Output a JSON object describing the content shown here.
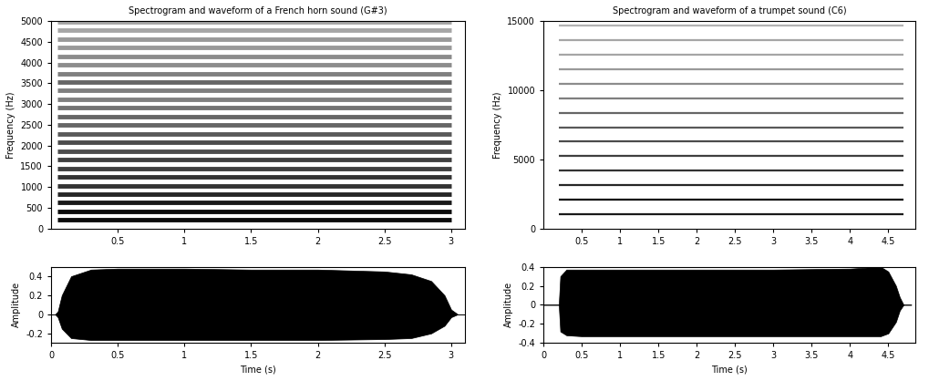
{
  "chart_data": [
    {
      "type": "spectrogram",
      "title": "Spectrogram and waveform of a French horn sound (G#3)",
      "y_label": "Frequency (Hz)",
      "xlim": [
        0,
        3.1
      ],
      "xticks": [
        0.5,
        1,
        1.5,
        2,
        2.5,
        3
      ],
      "ylim": [
        0,
        5000
      ],
      "yticks": [
        0,
        500,
        1000,
        1500,
        2000,
        2500,
        3000,
        3500,
        4000,
        4500,
        5000
      ],
      "onset": 0.05,
      "offset": 3.0,
      "partials": [
        208,
        415,
        623,
        830,
        1038,
        1246,
        1453,
        1661,
        1869,
        2076,
        2284,
        2491,
        2699,
        2907,
        3114,
        3322,
        3530,
        3737,
        3945,
        4152,
        4360,
        4568,
        4775,
        4983
      ],
      "levels": [
        0.95,
        0.95,
        0.9,
        0.85,
        0.8,
        0.8,
        0.75,
        0.75,
        0.7,
        0.7,
        0.65,
        0.6,
        0.6,
        0.55,
        0.5,
        0.5,
        0.6,
        0.5,
        0.45,
        0.45,
        0.4,
        0.4,
        0.35,
        0.35
      ]
    },
    {
      "type": "waveform",
      "x_label": "Time (s)",
      "y_label": "Amplitude",
      "color": "#000000",
      "xlim": [
        0,
        3.1
      ],
      "xticks": [
        0,
        0.5,
        1,
        1.5,
        2,
        2.5,
        3
      ],
      "ylim": [
        -0.3,
        0.5
      ],
      "yticks": [
        -0.2,
        0,
        0.2,
        0.4
      ],
      "x": [
        0.0,
        0.03,
        0.05,
        0.08,
        0.15,
        0.3,
        0.5,
        1.0,
        1.5,
        2.0,
        2.5,
        2.7,
        2.85,
        2.95,
        3.0,
        3.05,
        3.1
      ],
      "upper": [
        0,
        0,
        0.03,
        0.2,
        0.4,
        0.47,
        0.48,
        0.48,
        0.47,
        0.47,
        0.45,
        0.42,
        0.35,
        0.2,
        0.05,
        0,
        0
      ],
      "lower": [
        0,
        0,
        -0.03,
        -0.15,
        -0.25,
        -0.27,
        -0.27,
        -0.27,
        -0.27,
        -0.27,
        -0.26,
        -0.25,
        -0.2,
        -0.12,
        -0.03,
        0,
        0
      ]
    },
    {
      "type": "spectrogram",
      "title": "Spectrogram and waveform of a trumpet sound (C6)",
      "y_label": "Frequency (Hz)",
      "xlim": [
        0,
        4.85
      ],
      "xticks": [
        0.5,
        1,
        1.5,
        2,
        2.5,
        3,
        3.5,
        4,
        4.5
      ],
      "ylim": [
        0,
        15000
      ],
      "yticks": [
        0,
        5000,
        10000,
        15000
      ],
      "onset": 0.2,
      "offset": 4.7,
      "partials": [
        1046,
        2093,
        3139,
        4186,
        5232,
        6278,
        7325,
        8371,
        9418,
        10464,
        11510,
        12557,
        13603,
        14650
      ],
      "levels": [
        0.9,
        0.95,
        0.85,
        0.8,
        0.75,
        0.7,
        0.65,
        0.6,
        0.5,
        0.45,
        0.4,
        0.35,
        0.35,
        0.3
      ]
    },
    {
      "type": "waveform",
      "x_label": "Time (s)",
      "y_label": "Amplitude",
      "color": "#000000",
      "xlim": [
        0,
        4.85
      ],
      "xticks": [
        0,
        0.5,
        1,
        1.5,
        2,
        2.5,
        3,
        3.5,
        4,
        4.5
      ],
      "ylim": [
        -0.4,
        0.4
      ],
      "yticks": [
        -0.4,
        -0.2,
        0,
        0.2,
        0.4
      ],
      "x": [
        0,
        0.2,
        0.22,
        0.3,
        0.5,
        1,
        2,
        3,
        4,
        4.4,
        4.5,
        4.6,
        4.65,
        4.7,
        4.8
      ],
      "upper": [
        0,
        0,
        0.3,
        0.37,
        0.37,
        0.37,
        0.37,
        0.37,
        0.38,
        0.4,
        0.35,
        0.2,
        0.08,
        0,
        0
      ],
      "lower": [
        0,
        0,
        -0.28,
        -0.32,
        -0.33,
        -0.33,
        -0.33,
        -0.33,
        -0.33,
        -0.33,
        -0.3,
        -0.18,
        -0.06,
        0,
        0
      ]
    }
  ]
}
